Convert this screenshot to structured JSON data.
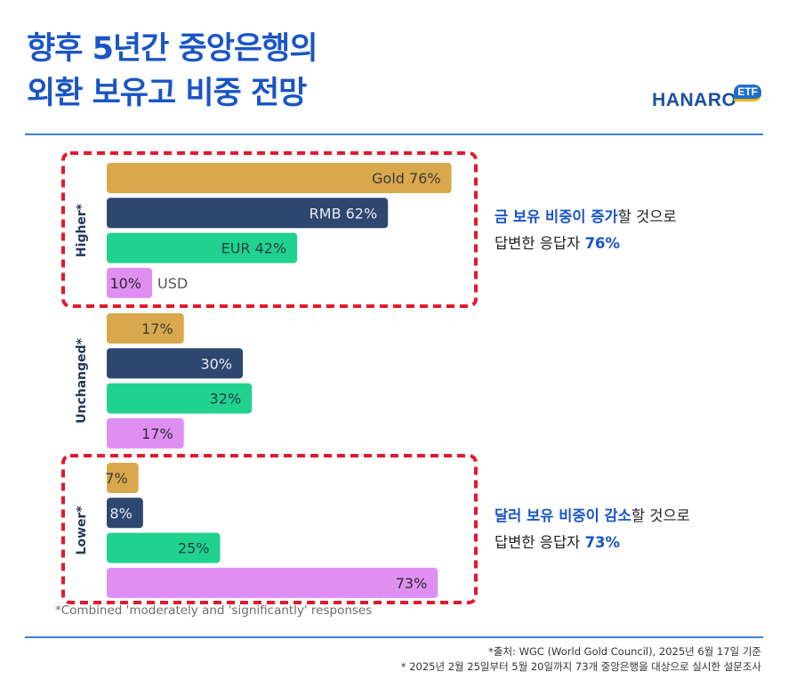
{
  "header": {
    "title_line1": "향후 5년간 중앙은행의",
    "title_line2": "외환 보유고 비중 전망"
  },
  "logo": {
    "text": "HANARO",
    "badge": "ETF"
  },
  "colors": {
    "gold": "#d9a84c",
    "rmb": "#2e4770",
    "eur": "#1fd38e",
    "usd": "#df8ff2",
    "accent": "#1a55c6",
    "highlight_box": "#e3192b"
  },
  "chart_data": {
    "type": "bar",
    "orientation": "horizontal",
    "groups": [
      {
        "name": "Higher*",
        "bars": [
          {
            "series": "Gold",
            "value": 76,
            "label": "Gold 76%"
          },
          {
            "series": "RMB",
            "value": 62,
            "label": "RMB 62%"
          },
          {
            "series": "EUR",
            "value": 42,
            "label": "EUR 42%"
          },
          {
            "series": "USD",
            "value": 10,
            "label": "10%",
            "outside_label": "USD"
          }
        ]
      },
      {
        "name": "Unchanged*",
        "bars": [
          {
            "series": "Gold",
            "value": 17,
            "label": "17%"
          },
          {
            "series": "RMB",
            "value": 30,
            "label": "30%"
          },
          {
            "series": "EUR",
            "value": 32,
            "label": "32%"
          },
          {
            "series": "USD",
            "value": 17,
            "label": "17%"
          }
        ]
      },
      {
        "name": "Lower*",
        "bars": [
          {
            "series": "Gold",
            "value": 7,
            "label": "7%"
          },
          {
            "series": "RMB",
            "value": 8,
            "label": "8%"
          },
          {
            "series": "EUR",
            "value": 25,
            "label": "25%"
          },
          {
            "series": "USD",
            "value": 73,
            "label": "73%"
          }
        ]
      }
    ],
    "xlim": [
      0,
      100
    ],
    "footnote": "*Combined 'moderately and 'significantly' responses"
  },
  "annotations": [
    {
      "highlight": "금 보유 비중이 증가",
      "rest": "할 것으로",
      "line2": "답변한 응답자 ",
      "value": "76%"
    },
    {
      "highlight": "달러 보유 비중이 감소",
      "rest": "할 것으로",
      "line2": "답변한 응답자 ",
      "value": "73%"
    }
  ],
  "source": {
    "line1": "*출처: WGC (World Gold Council), 2025년 6월 17일 기준",
    "line2": "* 2025년 2월 25일부터 5월 20일까지 73개 중앙은행을 대상으로 실시한 설문조사"
  }
}
